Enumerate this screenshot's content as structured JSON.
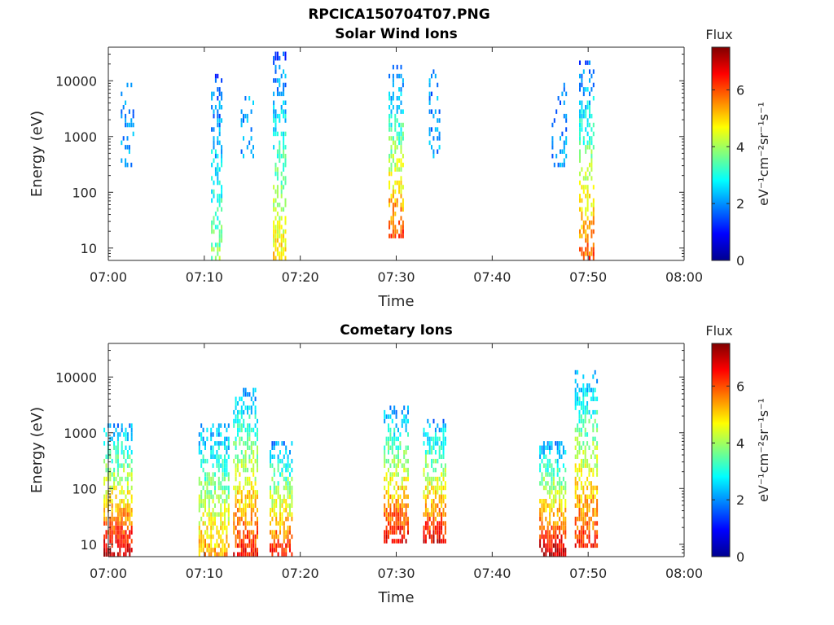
{
  "figure": {
    "title": "RPCICA150704T07.PNG"
  },
  "chart_data": [
    {
      "type": "heatmap",
      "title": "Solar Wind Ions",
      "xlabel": "Time",
      "ylabel": "Energy (eV)",
      "x_ticks": [
        "07:00",
        "07:10",
        "07:20",
        "07:30",
        "07:40",
        "07:50",
        "08:00"
      ],
      "xlim_minutes": [
        0,
        60
      ],
      "y_scale": "log",
      "y_ticks": [
        "10",
        "100",
        "1000",
        "10000"
      ],
      "ylim": [
        6,
        40000
      ],
      "colorbar": {
        "title": "Flux",
        "unit": "eV⁻¹cm⁻²sr⁻¹s⁻¹",
        "ticks": [
          "0",
          "2",
          "4",
          "6"
        ],
        "range": [
          0,
          7.5
        ],
        "colormap": "jet"
      },
      "bursts": [
        {
          "time_min": 2.0,
          "width_min": 1.4,
          "e_min": 300,
          "e_max": 12000,
          "low_flux": 2.0,
          "peak_flux": 2.0,
          "density": 0.35
        },
        {
          "time_min": 11.3,
          "width_min": 1.2,
          "e_min": 6,
          "e_max": 14000,
          "low_flux": 3.8,
          "peak_flux": 1.5,
          "density": 0.55
        },
        {
          "time_min": 14.5,
          "width_min": 1.4,
          "e_min": 400,
          "e_max": 8000,
          "low_flux": 2.0,
          "peak_flux": 2.0,
          "density": 0.3
        },
        {
          "time_min": 17.8,
          "width_min": 1.3,
          "e_min": 6,
          "e_max": 35000,
          "low_flux": 5.0,
          "peak_flux": 1.5,
          "density": 0.6
        },
        {
          "time_min": 30.0,
          "width_min": 1.6,
          "e_min": 15,
          "e_max": 20000,
          "low_flux": 6.2,
          "peak_flux": 1.5,
          "density": 0.6
        },
        {
          "time_min": 34.0,
          "width_min": 1.2,
          "e_min": 400,
          "e_max": 15000,
          "low_flux": 2.0,
          "peak_flux": 2.0,
          "density": 0.3
        },
        {
          "time_min": 47.0,
          "width_min": 1.6,
          "e_min": 300,
          "e_max": 9000,
          "low_flux": 2.0,
          "peak_flux": 2.0,
          "density": 0.3
        },
        {
          "time_min": 49.8,
          "width_min": 1.5,
          "e_min": 6,
          "e_max": 25000,
          "low_flux": 6.0,
          "peak_flux": 1.5,
          "density": 0.6
        }
      ]
    },
    {
      "type": "heatmap",
      "title": "Cometary Ions",
      "xlabel": "Time",
      "ylabel": "Energy (eV)",
      "x_ticks": [
        "07:00",
        "07:10",
        "07:20",
        "07:30",
        "07:40",
        "07:50",
        "08:00"
      ],
      "xlim_minutes": [
        0,
        60
      ],
      "y_scale": "log",
      "y_ticks": [
        "10",
        "100",
        "1000",
        "10000"
      ],
      "ylim": [
        6,
        40000
      ],
      "colorbar": {
        "title": "Flux",
        "unit": "eV⁻¹cm⁻²sr⁻¹s⁻¹",
        "ticks": [
          "0",
          "2",
          "4",
          "6"
        ],
        "range": [
          0,
          7.5
        ],
        "colormap": "jet"
      },
      "bursts": [
        {
          "time_min": 1.0,
          "width_min": 3.0,
          "e_min": 6,
          "e_max": 1500,
          "low_flux": 7.0,
          "peak_flux": 2.0,
          "density": 0.75
        },
        {
          "time_min": 11.0,
          "width_min": 3.2,
          "e_min": 6,
          "e_max": 1500,
          "low_flux": 5.5,
          "peak_flux": 2.0,
          "density": 0.7
        },
        {
          "time_min": 14.3,
          "width_min": 2.6,
          "e_min": 6,
          "e_max": 7000,
          "low_flux": 6.5,
          "peak_flux": 2.0,
          "density": 0.7
        },
        {
          "time_min": 18.0,
          "width_min": 2.4,
          "e_min": 6,
          "e_max": 700,
          "low_flux": 6.5,
          "peak_flux": 2.0,
          "density": 0.7
        },
        {
          "time_min": 30.0,
          "width_min": 2.6,
          "e_min": 10,
          "e_max": 2800,
          "low_flux": 6.8,
          "peak_flux": 2.0,
          "density": 0.7
        },
        {
          "time_min": 34.0,
          "width_min": 2.4,
          "e_min": 10,
          "e_max": 1800,
          "low_flux": 6.8,
          "peak_flux": 2.0,
          "density": 0.7
        },
        {
          "time_min": 46.3,
          "width_min": 2.8,
          "e_min": 6,
          "e_max": 700,
          "low_flux": 7.2,
          "peak_flux": 2.0,
          "density": 0.75
        },
        {
          "time_min": 49.8,
          "width_min": 2.4,
          "e_min": 8,
          "e_max": 13000,
          "low_flux": 6.5,
          "peak_flux": 2.0,
          "density": 0.7
        }
      ]
    }
  ]
}
